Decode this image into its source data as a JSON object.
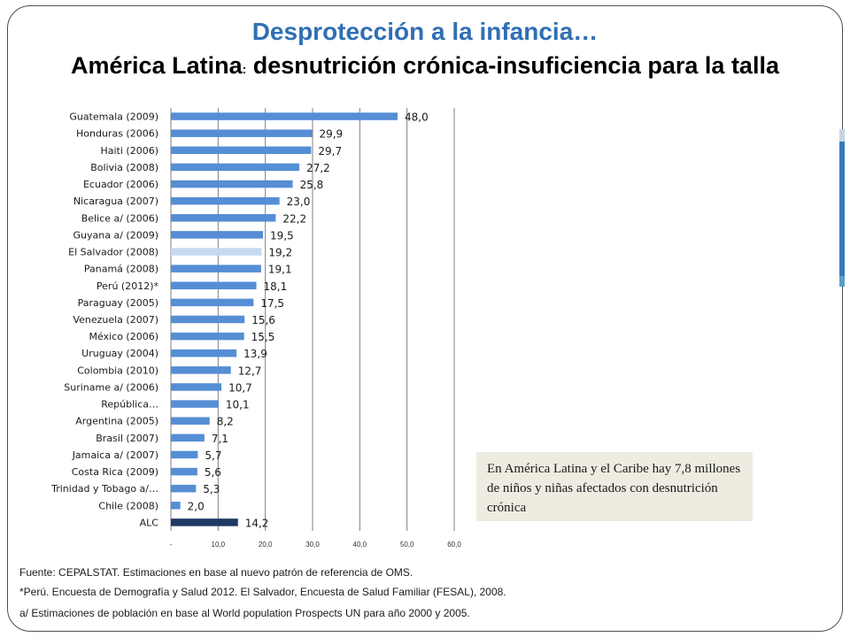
{
  "header": {
    "title": "Desprotección a la infancia…",
    "subtitle_bold": "América Latina",
    "subtitle_sep": ":",
    "subtitle_rest": " desnutrición crónica-insuficiencia para la talla"
  },
  "chart_data": {
    "type": "bar",
    "orientation": "horizontal",
    "categories": [
      "Guatemala (2009)",
      "Honduras (2006)",
      "Haiti (2006)",
      "Bolivia (2008)",
      "Ecuador (2006)",
      "Nicaragua (2007)",
      "Belice a/ (2006)",
      "Guyana a/ (2009)",
      "El Salvador (2008)",
      "Panamá (2008)",
      "Perú (2012)*",
      "Paraguay (2005)",
      "Venezuela (2007)",
      "México (2006)",
      "Uruguay (2004)",
      "Colombia (2010)",
      "Suriname a/ (2006)",
      "República…",
      "Argentina (2005)",
      "Brasil (2007)",
      "Jamaica a/ (2007)",
      "Costa Rica (2009)",
      "Trinidad y Tobago a/…",
      "Chile (2008)",
      "ALC"
    ],
    "values": [
      48.0,
      29.9,
      29.7,
      27.2,
      25.8,
      23.0,
      22.2,
      19.5,
      19.2,
      19.1,
      18.1,
      17.5,
      15.6,
      15.5,
      13.9,
      12.7,
      10.7,
      10.1,
      8.2,
      7.1,
      5.7,
      5.6,
      5.3,
      2.0,
      14.2
    ],
    "value_labels": [
      "48,0",
      "29,9",
      "29,7",
      "27,2",
      "25,8",
      "23,0",
      "22,2",
      "19,5",
      "19,2",
      "19,1",
      "18,1",
      "17,5",
      "15,6",
      "15,5",
      "13,9",
      "12,7",
      "10,7",
      "10,1",
      "8,2",
      "7,1",
      "5,7",
      "5,6",
      "5,3",
      "2,0",
      "14,2"
    ],
    "xlim": [
      0,
      60
    ],
    "xticks": [
      "-",
      "10,0",
      "20,0",
      "30,0",
      "40,0",
      "50,0",
      "60,0"
    ],
    "grid": true,
    "legend": false,
    "bar_color": "#558ed5",
    "highlight": {
      "El Salvador (2008)": "#c6d9f1",
      "ALC": "#1f3864"
    }
  },
  "note": {
    "text": "En América Latina y el Caribe hay 7,8 millones de niños y niñas afectados con desnutrición crónica"
  },
  "sources": {
    "line1": "Fuente: CEPALSTAT.  Estimaciones en base al nuevo patrón de referencia de OMS.",
    "line2": "*Perú. Encuesta de Demografía y Salud  2012. El Salvador, Encuesta de Salud Familiar (FESAL), 2008.",
    "line3": "a/ Estimaciones de población en base al World population Prospects UN para año 2000 y 2005."
  }
}
